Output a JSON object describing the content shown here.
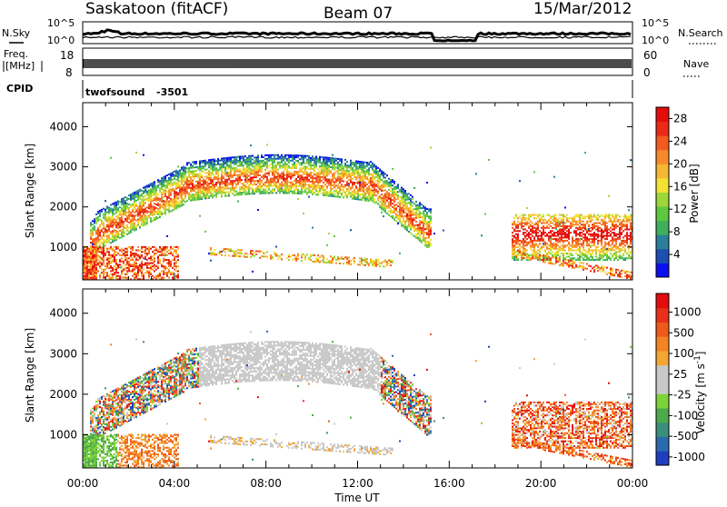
{
  "header": {
    "station": "Saskatoon (fitACF)",
    "beam": "Beam 07",
    "date": "15/Mar/2012"
  },
  "top_panel": {
    "left_label": "N.Sky",
    "right_label": "N.Search",
    "left_ticks": [
      "10^5",
      "10^0"
    ],
    "right_ticks": [
      "10^5",
      "10^0"
    ]
  },
  "freq_panel": {
    "left_label_line1": "Freq.",
    "left_label_line2": "[MHz]",
    "left_ticks": [
      "18",
      "8"
    ],
    "right_ticks": [
      "60",
      "0"
    ],
    "right_label": "Nave"
  },
  "cpid_panel": {
    "label": "CPID",
    "program": "twofsound",
    "id": "-3501"
  },
  "chart_data": [
    {
      "type": "heatmap",
      "panel": "power",
      "ylabel": "Slant Range [km]",
      "y_ticks": [
        1000,
        2000,
        3000,
        4000
      ],
      "ylim": [
        180,
        4600
      ],
      "x_unit": "hours UT",
      "xlim": [
        0,
        24
      ],
      "x_ticks": [
        "00:00",
        "04:00",
        "08:00",
        "12:00",
        "16:00",
        "20:00",
        "00:00"
      ],
      "x_tick_hours": [
        0,
        4,
        8,
        12,
        16,
        20,
        24
      ],
      "colorbar_label": "Power [dB]",
      "colorbar_ticks": [
        "4",
        "8",
        "12",
        "16",
        "20",
        "24",
        "28"
      ],
      "colorbar_colors": [
        "#0b10f0",
        "#1b4fb0",
        "#2a7f9a",
        "#3fae5e",
        "#5cc83f",
        "#9ed63a",
        "#f2e232",
        "#f6b733",
        "#f68a2b",
        "#f25a1f",
        "#ea2a16",
        "#e60c0c"
      ],
      "region_intensity_dB": [
        {
          "region": "main F-region echo band (00:30-15:00 UT)",
          "power_db": [
            10,
            24
          ]
        },
        {
          "region": "near-range echoes 00:00-04:00 UT",
          "power_db": [
            16,
            30
          ]
        },
        {
          "region": "evening echoes 19:00-24:00 UT",
          "power_db": [
            8,
            30
          ]
        }
      ]
    },
    {
      "type": "heatmap",
      "panel": "velocity",
      "ylabel": "Slant Range [km]",
      "y_ticks": [
        1000,
        2000,
        3000,
        4000
      ],
      "ylim": [
        180,
        4600
      ],
      "x_unit": "hours UT",
      "xlim": [
        0,
        24
      ],
      "x_ticks": [
        "00:00",
        "04:00",
        "08:00",
        "12:00",
        "16:00",
        "20:00",
        "00:00"
      ],
      "x_tick_hours": [
        0,
        4,
        8,
        12,
        16,
        20,
        24
      ],
      "xlabel": "Time UT",
      "colorbar_label": "Velocity [m s",
      "colorbar_sup": "-1",
      "colorbar_close": "]",
      "colorbar_ticks": [
        "1000",
        "500",
        "100",
        "25",
        "-25",
        "-100",
        "-500",
        "-1000"
      ],
      "colorbar_colors": [
        "#1d3fbf",
        "#2c6ab0",
        "#3b8f7a",
        "#4daa4c",
        "#7ed23a",
        "#c8c8c8",
        "#c8c8c8",
        "#f4a633",
        "#f48322",
        "#ef5a1a",
        "#e8301a",
        "#e30b0b"
      ]
    }
  ]
}
